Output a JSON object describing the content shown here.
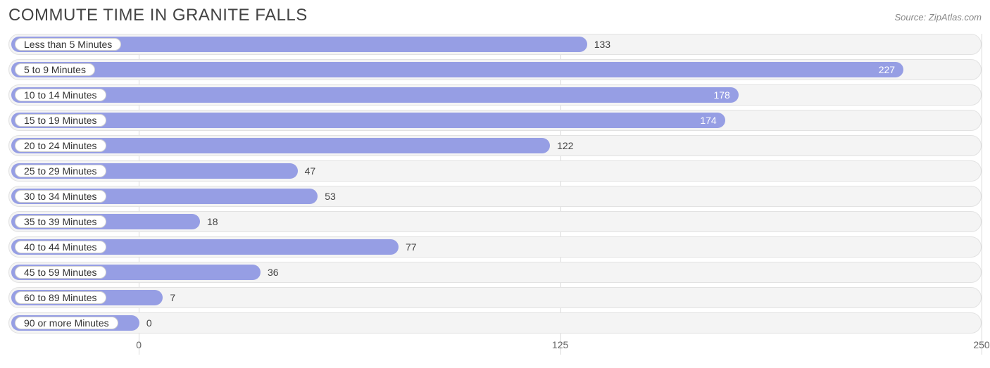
{
  "header": {
    "title": "COMMUTE TIME IN GRANITE FALLS",
    "source": "Source: ZipAtlas.com"
  },
  "chart": {
    "type": "bar-horizontal",
    "bar_color": "#969ee4",
    "track_bg": "#f4f4f4",
    "track_border": "#e2e2e2",
    "pill_bg": "#ffffff",
    "pill_border": "#d0d0d0",
    "grid_color": "#d9d9d9",
    "title_color": "#444444",
    "source_color": "#888888",
    "value_font_size": 14,
    "label_font_size": 14,
    "title_font_size": 24,
    "xlim": [
      0,
      250
    ],
    "xticks": [
      0,
      125,
      250
    ],
    "bar_origin_pct": 13.4,
    "bars": [
      {
        "label": "Less than 5 Minutes",
        "value": 133,
        "value_inside": false
      },
      {
        "label": "5 to 9 Minutes",
        "value": 227,
        "value_inside": true
      },
      {
        "label": "10 to 14 Minutes",
        "value": 178,
        "value_inside": true
      },
      {
        "label": "15 to 19 Minutes",
        "value": 174,
        "value_inside": true
      },
      {
        "label": "20 to 24 Minutes",
        "value": 122,
        "value_inside": false
      },
      {
        "label": "25 to 29 Minutes",
        "value": 47,
        "value_inside": false
      },
      {
        "label": "30 to 34 Minutes",
        "value": 53,
        "value_inside": false
      },
      {
        "label": "35 to 39 Minutes",
        "value": 18,
        "value_inside": false
      },
      {
        "label": "40 to 44 Minutes",
        "value": 77,
        "value_inside": false
      },
      {
        "label": "45 to 59 Minutes",
        "value": 36,
        "value_inside": false
      },
      {
        "label": "60 to 89 Minutes",
        "value": 7,
        "value_inside": false
      },
      {
        "label": "90 or more Minutes",
        "value": 0,
        "value_inside": false
      }
    ]
  }
}
